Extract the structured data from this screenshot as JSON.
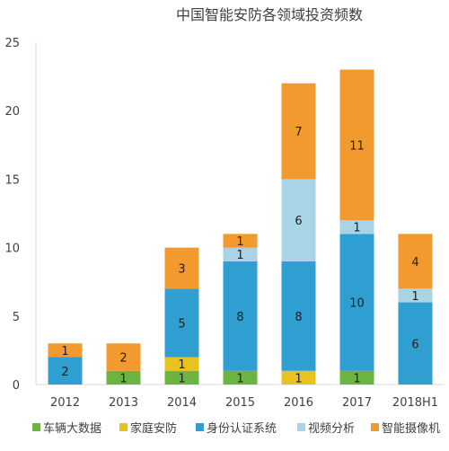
{
  "chart_data": {
    "type": "bar",
    "stacked": true,
    "title": "中国智能安防各领域投资频数",
    "categories": [
      "2012",
      "2013",
      "2014",
      "2015",
      "2016",
      "2017",
      "2018H1"
    ],
    "ylim": [
      0,
      25
    ],
    "yticks": [
      0,
      5,
      10,
      15,
      20,
      25
    ],
    "grid": false,
    "legend_position": "bottom",
    "series": [
      {
        "name": "车辆大数据",
        "color": "#6db33f",
        "values": [
          0,
          1,
          1,
          1,
          0,
          1,
          0
        ]
      },
      {
        "name": "家庭安防",
        "color": "#e8c21e",
        "values": [
          0,
          0,
          1,
          0,
          1,
          0,
          0
        ]
      },
      {
        "name": "身份认证系统",
        "color": "#2f9ed1",
        "values": [
          2,
          0,
          5,
          8,
          8,
          10,
          6
        ]
      },
      {
        "name": "视频分析",
        "color": "#a9d4e6",
        "values": [
          0,
          0,
          0,
          1,
          6,
          1,
          1
        ]
      },
      {
        "name": "智能摄像机",
        "color": "#f39a2e",
        "values": [
          1,
          2,
          3,
          1,
          7,
          11,
          4
        ]
      }
    ]
  }
}
